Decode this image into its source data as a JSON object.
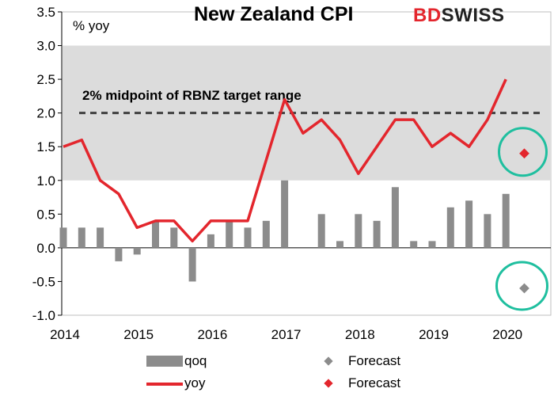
{
  "header": {
    "title": "New Zealand CPI",
    "logo_red": "BD",
    "logo_dark": "SWISS"
  },
  "chart_data": {
    "type": "bar",
    "ylabel": "% yoy",
    "ylim": [
      -1.0,
      3.5
    ],
    "yticks": [
      "3.5",
      "3.0",
      "2.5",
      "2.0",
      "1.5",
      "1.0",
      "0.5",
      "0.0",
      "-0.5",
      "-1.0"
    ],
    "xticks": [
      "2014",
      "2015",
      "2016",
      "2017",
      "2018",
      "2019",
      "2020"
    ],
    "target_band": [
      1.0,
      3.0
    ],
    "midpoint": {
      "value": 2.0,
      "label": "2% midpoint of RBNZ target range"
    },
    "quarters": [
      "2014Q1",
      "2014Q2",
      "2014Q3",
      "2014Q4",
      "2015Q1",
      "2015Q2",
      "2015Q3",
      "2015Q4",
      "2016Q1",
      "2016Q2",
      "2016Q3",
      "2016Q4",
      "2017Q1",
      "2017Q2",
      "2017Q3",
      "2017Q4",
      "2018Q1",
      "2018Q2",
      "2018Q3",
      "2018Q4",
      "2019Q1",
      "2019Q2",
      "2019Q3",
      "2019Q4",
      "2020Q1"
    ],
    "series": [
      {
        "name": "qoq",
        "type": "bar",
        "color": "#8c8c8c",
        "values": [
          0.3,
          0.3,
          0.3,
          -0.2,
          -0.1,
          0.4,
          0.3,
          -0.5,
          0.2,
          0.4,
          0.3,
          0.4,
          1.0,
          0.0,
          0.5,
          0.1,
          0.5,
          0.4,
          0.9,
          0.1,
          0.1,
          0.6,
          0.7,
          0.5,
          0.8
        ]
      },
      {
        "name": "yoy",
        "type": "line",
        "color": "#e3262d",
        "values": [
          1.5,
          1.6,
          1.0,
          0.8,
          0.3,
          0.4,
          0.4,
          0.1,
          0.4,
          0.4,
          0.4,
          1.3,
          2.2,
          1.7,
          1.9,
          1.6,
          1.1,
          1.5,
          1.9,
          1.9,
          1.5,
          1.7,
          1.5,
          1.9,
          2.5
        ]
      }
    ],
    "forecast": {
      "quarter": "2020Q2",
      "qoq": -0.6,
      "yoy": 1.4,
      "qoq_color": "#8c8c8c",
      "yoy_color": "#e3262d",
      "circle_color": "#1fbf9f"
    },
    "legend": {
      "qoq": "qoq",
      "yoy": "yoy",
      "forecast_qoq": "Forecast",
      "forecast_yoy": "Forecast"
    }
  }
}
